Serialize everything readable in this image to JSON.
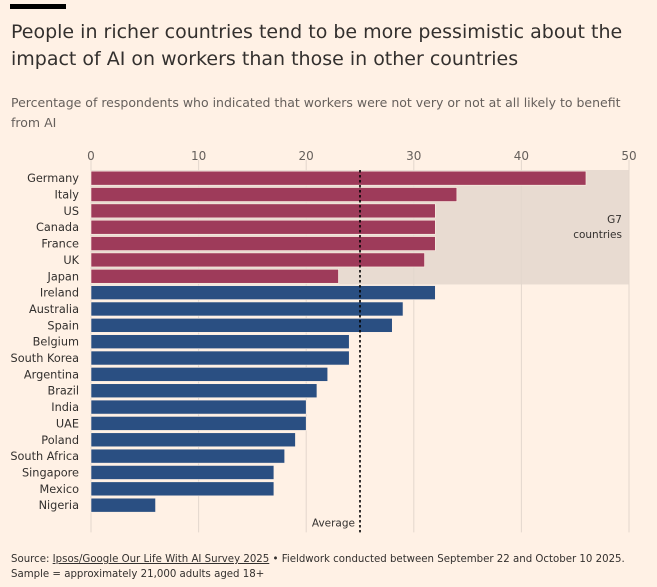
{
  "header": {
    "title": "People in richer countries tend to be more pessimistic about the impact of AI on workers than those in other countries",
    "subtitle": "Percentage of respondents who indicated that workers were not very or not at all likely to benefit from AI"
  },
  "footer": {
    "source_label": "Source: ",
    "source_link": "Ipsos/Google Our Life With AI Survey 2025",
    "source_rest": " • Fieldwork conducted between September 22 and October 10 2025. Sample = approximately 21,000 adults aged 18+"
  },
  "chart_data": {
    "type": "bar",
    "orientation": "horizontal",
    "categories": [
      "Germany",
      "Italy",
      "US",
      "Canada",
      "France",
      "UK",
      "Japan",
      "Ireland",
      "Australia",
      "Spain",
      "Belgium",
      "South Korea",
      "Argentina",
      "Brazil",
      "India",
      "UAE",
      "Poland",
      "South Africa",
      "Singapore",
      "Mexico",
      "Nigeria"
    ],
    "values": [
      46,
      34,
      32,
      32,
      32,
      31,
      23,
      32,
      29,
      28,
      24,
      24,
      22,
      21,
      20,
      20,
      19,
      18,
      17,
      17,
      6
    ],
    "groups": [
      "G7",
      "G7",
      "G7",
      "G7",
      "G7",
      "G7",
      "G7",
      "other",
      "other",
      "other",
      "other",
      "other",
      "other",
      "other",
      "other",
      "other",
      "other",
      "other",
      "other",
      "other",
      "other"
    ],
    "xlim": [
      0,
      50
    ],
    "x_ticks": [
      0,
      10,
      20,
      30,
      40,
      50
    ],
    "average": 25,
    "average_label": "Average",
    "g7_band_label": [
      "G7",
      "countries"
    ],
    "colors": {
      "g7": "#9e3b5a",
      "other": "#2a4f82",
      "band": "#e8dbd1",
      "grid": "#e3d7cd",
      "average_line": "#000000"
    },
    "title": "",
    "xlabel": "",
    "ylabel": "",
    "grid": true
  }
}
